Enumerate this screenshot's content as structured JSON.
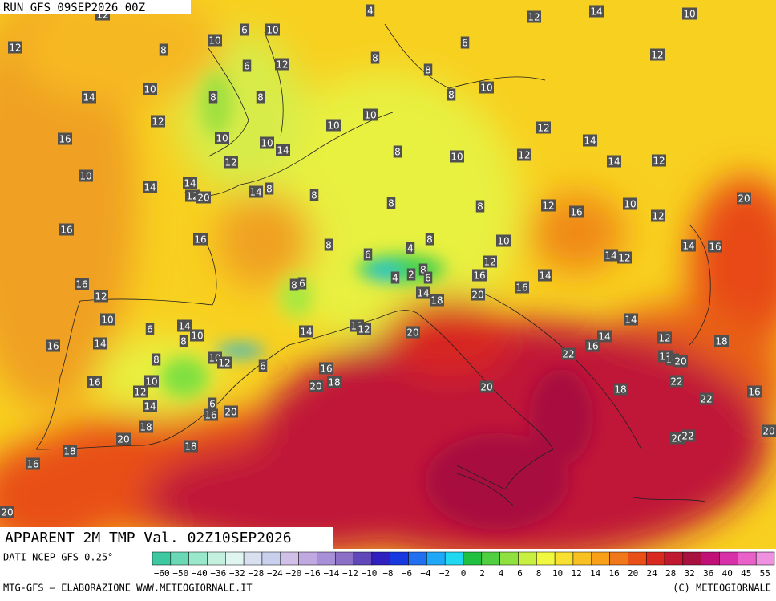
{
  "header": {
    "run": "RUN GFS 09SEP2026 00Z"
  },
  "map": {
    "title": "APPARENT 2M TMP Val. 02Z10SEP2026",
    "labels": [
      12,
      4,
      12,
      14,
      10,
      6,
      10,
      10,
      12,
      8,
      6,
      8,
      6,
      12,
      12,
      8,
      10,
      14,
      8,
      8,
      10,
      8,
      12,
      10,
      10,
      12,
      14,
      16,
      10,
      10,
      14,
      8,
      12,
      10,
      14,
      12,
      12,
      10,
      14,
      14,
      12,
      20,
      14,
      8,
      8,
      8,
      8,
      12,
      16,
      10,
      12,
      20,
      16,
      16,
      8,
      10,
      8,
      14,
      16,
      14,
      12,
      6,
      4,
      12,
      8,
      2,
      6,
      4,
      16,
      14,
      16,
      16,
      8,
      6,
      12,
      14,
      18,
      20,
      10,
      6,
      14,
      10,
      8,
      14,
      12,
      12,
      20,
      14,
      14,
      12,
      16,
      14,
      16,
      22,
      11,
      16,
      20,
      18,
      8,
      10,
      12,
      6,
      16,
      22,
      16,
      10,
      12,
      20,
      18,
      20,
      18,
      16,
      22,
      14,
      6,
      16,
      20,
      18,
      20,
      20,
      22,
      18,
      18,
      16,
      20,
      20
    ]
  },
  "footer": {
    "source": "DATI NCEP GFS 0.25°",
    "credit": "MTG-GFS — ELABORAZIONE WWW.METEOGIORNALE.IT",
    "copyright": "(C) METEOGIORNALE"
  },
  "colorbar": {
    "labels": [
      "−60",
      "−50",
      "−40",
      "−36",
      "−32",
      "−28",
      "−24",
      "−20",
      "−16",
      "−14",
      "−12",
      "−10",
      "−8",
      "−6",
      "−4",
      "−2",
      "0",
      "2",
      "4",
      "6",
      "8",
      "10",
      "12",
      "14",
      "16",
      "20",
      "24",
      "28",
      "32",
      "36",
      "40",
      "45",
      "55"
    ],
    "colors": [
      "#3ec8a0",
      "#6ad8b4",
      "#9ae8cc",
      "#c4f0e0",
      "#e0f4f0",
      "#d8e0f0",
      "#c8d0ee",
      "#d0c0e8",
      "#c0a8e0",
      "#a890d8",
      "#8c70c8",
      "#6048b8",
      "#3020c0",
      "#1838e0",
      "#2070f0",
      "#20a8f8",
      "#20d8f0",
      "#20c040",
      "#50d040",
      "#90e040",
      "#c8f040",
      "#f0f840",
      "#f8e030",
      "#f8c020",
      "#f8a018",
      "#f07818",
      "#e85018",
      "#d82820",
      "#c01830",
      "#a81040",
      "#c01078",
      "#d830a8",
      "#e860c8",
      "#f090e0"
    ]
  }
}
